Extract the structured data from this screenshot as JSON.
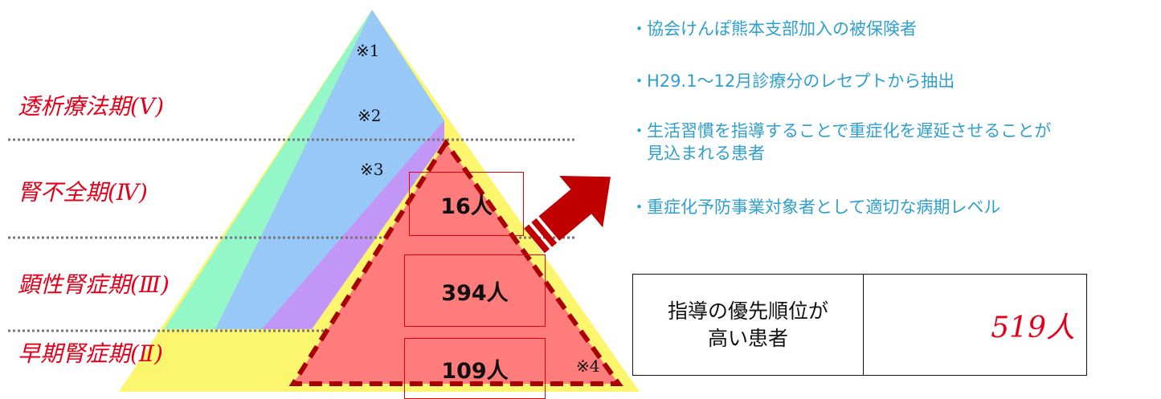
{
  "stages": [
    {
      "label": "透析療法期(Ⅴ)"
    },
    {
      "label": "腎不全期(Ⅳ)"
    },
    {
      "label": "顕性腎症期(Ⅲ)"
    },
    {
      "label": "早期腎症期(Ⅱ)"
    }
  ],
  "notes": {
    "n1": "※1",
    "n2": "※2",
    "n3": "※3",
    "n4": "※4"
  },
  "counts": {
    "stage4": "16人",
    "stage3": "394人",
    "stage2": "109人"
  },
  "bullets": [
    {
      "dot": "・",
      "text": "協会けんぽ熊本支部加入の被保険者"
    },
    {
      "dot": "・",
      "text": "H29.1～12月診療分のレセプトから抽出"
    },
    {
      "dot": "・",
      "text": "生活習慣を指導することで重症化を遅延させることが\n見込まれる患者"
    },
    {
      "dot": "・",
      "text": "重症化予防事業対象者として適切な病期レベル"
    }
  ],
  "summary": {
    "label": "指導の優先順位が\n高い患者",
    "value": "519人"
  },
  "colors": {
    "label_red": "#e3001b",
    "bullet_blue": "#2f9fce",
    "pyramid_yellow": "#fbf66e",
    "band_green": "#93f7c8",
    "band_blue": "#97c8f7",
    "band_purple": "#c296f7",
    "target_red": "#ff7c7c",
    "dash_red": "#a80000",
    "arrow_red": "#c00000"
  }
}
